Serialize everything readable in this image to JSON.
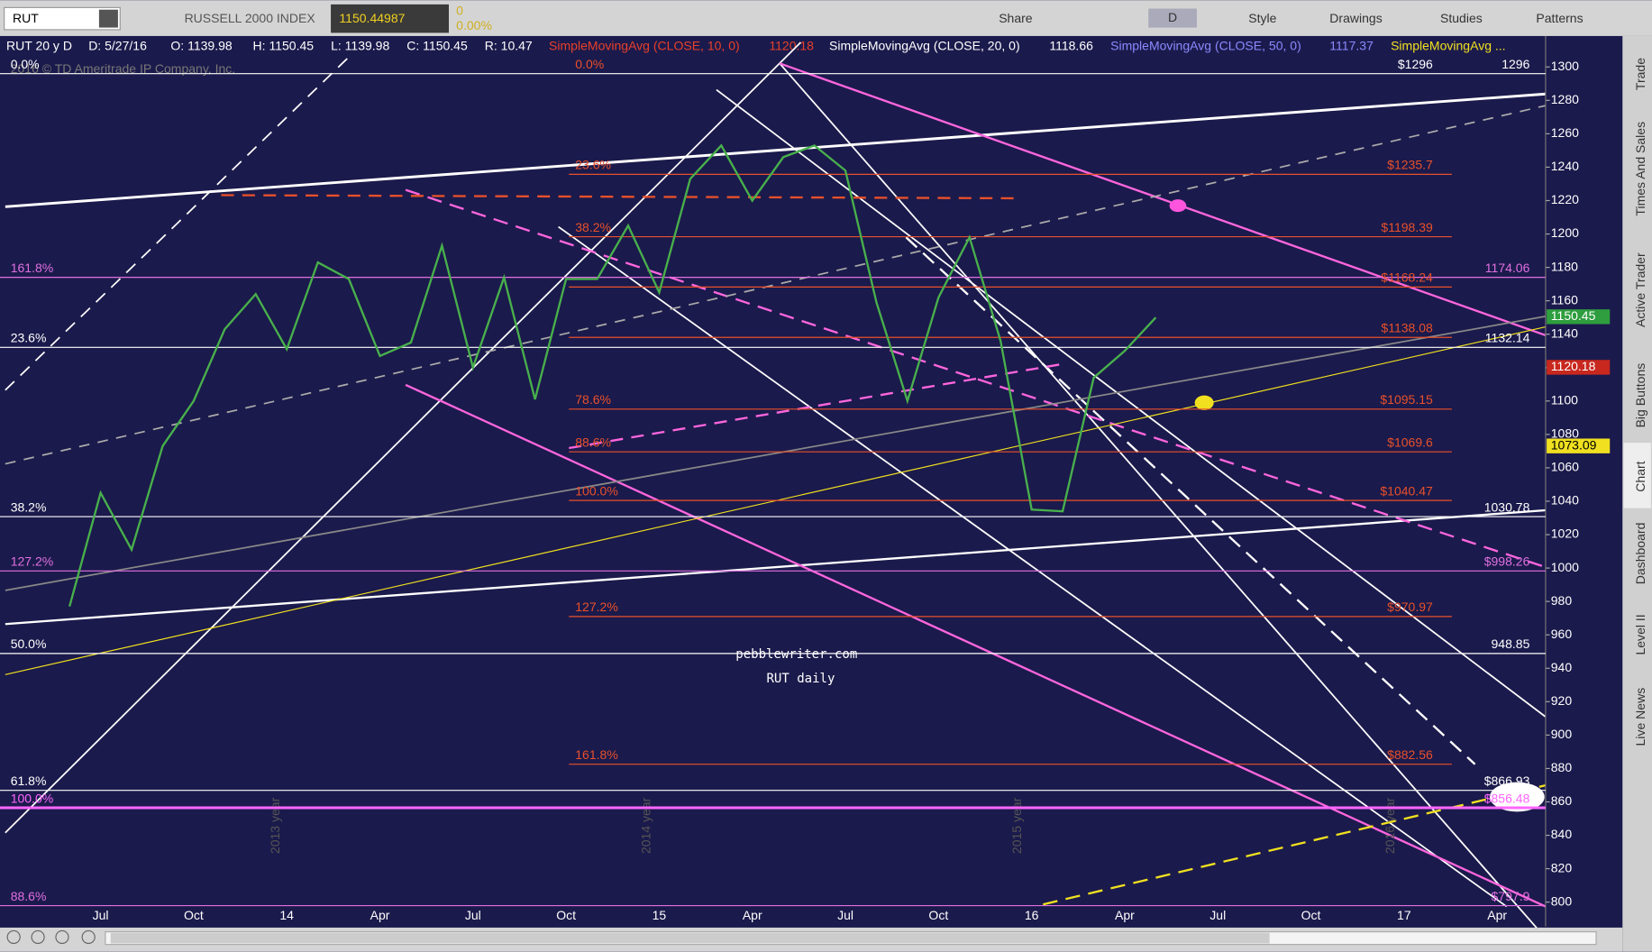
{
  "toolbar": {
    "symbol": "RUT",
    "name": "RUSSELL 2000 INDEX",
    "last": "1150.44987",
    "change": "0",
    "change_pct": "0.00%",
    "buttons": [
      "Share",
      "D",
      "Style",
      "Drawings",
      "Studies",
      "Patterns"
    ]
  },
  "info_bar": [
    "RUT 20 y D",
    "D: 5/27/16",
    "O: 1139.98",
    "H: 1150.45",
    "L: 1139.98",
    "C: 1150.45",
    "R: 10.47",
    "SimpleMovingAvg (CLOSE, 10, 0)",
    "1120.18",
    "SimpleMovingAvg (CLOSE, 20, 0)",
    "1118.66",
    "SimpleMovingAvg (CLOSE, 50, 0)",
    "1117.37",
    "SimpleMovingAvg ..."
  ],
  "copyright": "2016 © TD Ameritrade IP Company, Inc.",
  "watermark": [
    "pebblewriter.com",
    "RUT daily"
  ],
  "year_labels": [
    "2013 year",
    "2014 year",
    "2015 year",
    "2016 year"
  ],
  "side_tabs": [
    "Trade",
    "Times And Sales",
    "Active Trader",
    "Big Buttons",
    "Chart",
    "Dashboard",
    "Level II",
    "Live News"
  ],
  "chart_data": {
    "type": "line",
    "categories": [
      null,
      "Jul",
      null,
      null,
      "Oct",
      null,
      null,
      "14",
      null,
      null,
      "Apr",
      null,
      null,
      "Jul",
      null,
      null,
      "Oct",
      null,
      null,
      "15",
      null,
      null,
      "Apr",
      null,
      null,
      "Jul",
      null,
      null,
      "Oct",
      null,
      null,
      "16",
      null,
      null,
      "Apr",
      null,
      null,
      "Jul",
      null,
      null,
      "Oct",
      null,
      null,
      "17",
      null,
      null,
      "Apr"
    ],
    "values": [
      977,
      1045,
      1011,
      1073,
      1100,
      1143,
      1164,
      1131,
      1183,
      1173,
      1127,
      1135,
      1193,
      1120,
      1174,
      1101,
      1173,
      1173,
      1205,
      1165,
      1233,
      1253,
      1220,
      1246,
      1253,
      1238,
      1159,
      1100,
      1162,
      1198,
      1136,
      1035,
      1034,
      1114,
      1130,
      1150,
      null,
      null,
      null,
      null,
      null,
      null,
      null,
      null,
      null,
      null,
      null
    ],
    "color": "#48b04c",
    "ylim": [
      798,
      1316
    ],
    "yticks": [
      800,
      820,
      840,
      860,
      880,
      900,
      920,
      940,
      960,
      980,
      1000,
      1020,
      1040,
      1060,
      1080,
      1100,
      1120,
      1140,
      1160,
      1180,
      1200,
      1220,
      1240,
      1260,
      1280,
      1300
    ],
    "levels": [
      {
        "value": 1296,
        "color": "#ffffff",
        "left": "0.0%",
        "mid": "0.0%",
        "label": "$1296",
        "plain": true
      },
      {
        "value": 1235.7,
        "color": "#e8502a",
        "mid": "23.6%",
        "label": "$1235.7"
      },
      {
        "value": 1198.39,
        "color": "#e8502a",
        "mid": "38.2%",
        "label": "$1198.39"
      },
      {
        "value": 1174.06,
        "color": "#e070e0",
        "left": "161.8%",
        "plain": true
      },
      {
        "value": 1168.24,
        "color": "#e8502a",
        "label": "$1168.24"
      },
      {
        "value": 1138.08,
        "color": "#e8502a",
        "label": "$1138.08"
      },
      {
        "value": 1132.14,
        "color": "#ffffff",
        "left": "23.6%",
        "plain": true
      },
      {
        "value": 1095.15,
        "color": "#e8502a",
        "mid": "78.6%",
        "label": "$1095.15"
      },
      {
        "value": 1069.6,
        "color": "#e8502a",
        "mid": "88.6%",
        "label": "$1069.6"
      },
      {
        "value": 1040.47,
        "color": "#e8502a",
        "mid": "100.0%",
        "label": "$1040.47"
      },
      {
        "value": 1030.78,
        "color": "#ffffff",
        "left": "38.2%",
        "plain": true
      },
      {
        "value": 998.26,
        "color": "#e070e0",
        "left": "127.2%",
        "label": "$998.26"
      },
      {
        "value": 970.97,
        "color": "#e8502a",
        "mid": "127.2%",
        "label": "$970.97"
      },
      {
        "value": 948.85,
        "color": "#ffffff",
        "left": "50.0%",
        "plain": true
      },
      {
        "value": 882.56,
        "color": "#e8502a",
        "mid": "161.8%",
        "label": "$882.56"
      },
      {
        "value": 866.93,
        "color": "#ffffff",
        "left": "61.8%",
        "label": "$866.93"
      },
      {
        "value": 856.48,
        "color": "#ff66ff",
        "left": "100.0%",
        "label": "$856.48"
      },
      {
        "value": 797.9,
        "color": "#e070e0",
        "left": "88.6%",
        "label": "$797.9"
      }
    ],
    "price_tags": [
      {
        "value": 1150.45,
        "color": "#2e9e3e"
      },
      {
        "value": 1120.18,
        "color": "#c8281e"
      },
      {
        "value": 1073.09,
        "color": "#f0e020"
      }
    ]
  }
}
